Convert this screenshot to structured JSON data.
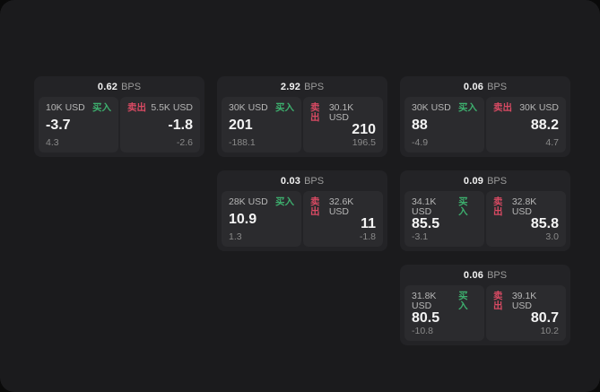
{
  "labels": {
    "bps": "BPS",
    "buy": "买入",
    "sell": "卖出"
  },
  "colors": {
    "background": "#0a0a0a",
    "surface": "#1b1b1d",
    "card": "#232326",
    "panel": "#2b2b2e",
    "buy_green": "#3daf6e",
    "sell_red": "#d84a63",
    "value_white": "#f4f4f4",
    "label_gray": "#b6b6b6",
    "sub_gray": "#8a8a8a"
  },
  "cards": [
    {
      "bps": "0.62",
      "buy": {
        "size": "10K USD",
        "value": "-3.7",
        "sub": "4.3"
      },
      "sell": {
        "size": "5.5K USD",
        "value": "-1.8",
        "sub": "-2.6"
      }
    },
    {
      "bps": "2.92",
      "buy": {
        "size": "30K USD",
        "value": "201",
        "sub": "-188.1"
      },
      "sell": {
        "size": "30.1K USD",
        "value": "210",
        "sub": "196.5"
      }
    },
    {
      "bps": "0.06",
      "buy": {
        "size": "30K USD",
        "value": "88",
        "sub": "-4.9"
      },
      "sell": {
        "size": "30K USD",
        "value": "88.2",
        "sub": "4.7"
      }
    },
    {
      "bps": "0.03",
      "buy": {
        "size": "28K USD",
        "value": "10.9",
        "sub": "1.3"
      },
      "sell": {
        "size": "32.6K USD",
        "value": "11",
        "sub": "-1.8"
      }
    },
    {
      "bps": "0.09",
      "buy": {
        "size": "34.1K USD",
        "value": "85.5",
        "sub": "-3.1"
      },
      "sell": {
        "size": "32.8K USD",
        "value": "85.8",
        "sub": "3.0"
      }
    },
    {
      "bps": "0.06",
      "buy": {
        "size": "31.8K USD",
        "value": "80.5",
        "sub": "-10.8"
      },
      "sell": {
        "size": "39.1K USD",
        "value": "80.7",
        "sub": "10.2"
      }
    }
  ]
}
